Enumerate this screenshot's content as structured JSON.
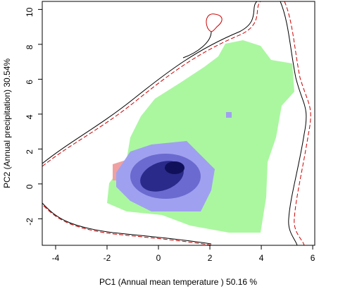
{
  "chart_data": {
    "type": "contour",
    "xlabel": "PC1 (Annual mean temperature ) 50.16 %",
    "ylabel": "PC2 (Annual precipitation) 30.54%",
    "xlim": [
      -4.52,
      6.08
    ],
    "ylim": [
      -3.52,
      10.46
    ],
    "xticks": [
      -4,
      -2,
      0,
      2,
      4,
      6
    ],
    "yticks": [
      -2,
      0,
      2,
      4,
      6,
      8,
      10
    ]
  }
}
